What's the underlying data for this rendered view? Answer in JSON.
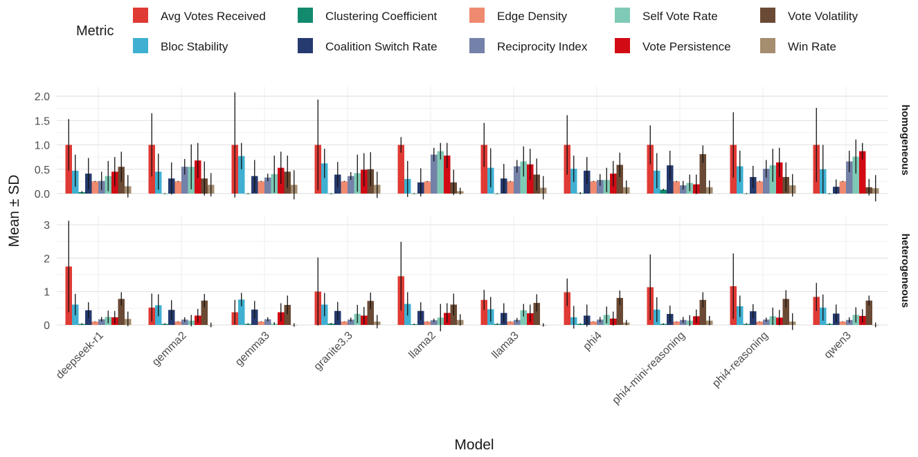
{
  "chart_data": {
    "type": "bar",
    "xlabel": "Model",
    "ylabel": "Mean ± SD",
    "legend": {
      "title": "Metric",
      "placement": "top"
    },
    "colors": {
      "Avg Votes Received": "#e03a35",
      "Bloc Stability": "#3fb0d1",
      "Clustering Coefficient": "#138a6e",
      "Coalition Switch Rate": "#253a6e",
      "Edge Density": "#ef8a70",
      "Reciprocity Index": "#7481a8",
      "Self Vote Rate": "#7fcab6",
      "Vote Persistence": "#d10a14",
      "Vote Volatility": "#6a4a35",
      "Win Rate": "#a58d70"
    },
    "legend_entries": [
      "Avg Votes Received",
      "Bloc Stability",
      "Clustering Coefficient",
      "Coalition Switch Rate",
      "Edge Density",
      "Reciprocity Index",
      "Self Vote Rate",
      "Vote Persistence",
      "Vote Volatility",
      "Win Rate"
    ],
    "categories": [
      "deepseek-r1",
      "gemma2",
      "gemma3",
      "granite3.3",
      "llama2",
      "llama3",
      "phi4",
      "phi4-mini-reasoning",
      "phi4-reasoning",
      "qwen3"
    ],
    "panels": [
      {
        "strip": "homogeneous",
        "ylim": [
          0,
          2.2
        ],
        "yticks": [
          0.0,
          0.5,
          1.0,
          1.5,
          2.0
        ],
        "ytick_labels": [
          "0.0",
          "0.5",
          "1.0",
          "1.5",
          "2.0"
        ],
        "series": [
          {
            "name": "Avg Votes Received",
            "values": [
              1.0,
              1.0,
              1.0,
              1.0,
              1.0,
              1.0,
              1.0,
              1.0,
              1.0,
              1.0
            ],
            "sd": [
              0.53,
              0.65,
              1.08,
              0.93,
              0.16,
              0.45,
              0.61,
              0.4,
              0.67,
              0.76
            ]
          },
          {
            "name": "Bloc Stability",
            "values": [
              0.47,
              0.45,
              0.77,
              0.62,
              0.3,
              0.53,
              0.51,
              0.47,
              0.56,
              0.5
            ],
            "sd": [
              0.33,
              0.37,
              0.27,
              0.3,
              0.37,
              0.4,
              0.27,
              0.36,
              0.32,
              0.5
            ]
          },
          {
            "name": "Clustering Coefficient",
            "values": [
              0.03,
              0.0,
              0.0,
              0.0,
              0.0,
              0.0,
              0.01,
              0.08,
              0.0,
              0.0
            ],
            "sd": [
              0.02,
              0.01,
              0.01,
              0.01,
              0.01,
              0.01,
              0.02,
              0.02,
              0.01,
              0.01
            ]
          },
          {
            "name": "Coalition Switch Rate",
            "values": [
              0.41,
              0.31,
              0.36,
              0.39,
              0.23,
              0.31,
              0.47,
              0.58,
              0.34,
              0.14
            ],
            "sd": [
              0.32,
              0.33,
              0.33,
              0.26,
              0.29,
              0.3,
              0.28,
              0.3,
              0.23,
              0.15
            ]
          },
          {
            "name": "Edge Density",
            "values": [
              0.25,
              0.25,
              0.25,
              0.25,
              0.25,
              0.25,
              0.25,
              0.25,
              0.25,
              0.25
            ],
            "sd": [
              0.01,
              0.01,
              0.01,
              0.01,
              0.01,
              0.01,
              0.01,
              0.01,
              0.01,
              0.01
            ]
          },
          {
            "name": "Reciprocity Index",
            "values": [
              0.26,
              0.55,
              0.33,
              0.36,
              0.8,
              0.56,
              0.28,
              0.17,
              0.51,
              0.66
            ],
            "sd": [
              0.19,
              0.16,
              0.08,
              0.08,
              0.14,
              0.13,
              0.12,
              0.09,
              0.18,
              0.22
            ]
          },
          {
            "name": "Self Vote Rate",
            "values": [
              0.36,
              0.55,
              0.4,
              0.42,
              0.87,
              0.66,
              0.28,
              0.22,
              0.58,
              0.76
            ],
            "sd": [
              0.31,
              0.46,
              0.38,
              0.38,
              0.17,
              0.31,
              0.25,
              0.17,
              0.34,
              0.35
            ]
          },
          {
            "name": "Vote Persistence",
            "values": [
              0.45,
              0.68,
              0.53,
              0.49,
              0.78,
              0.6,
              0.41,
              0.19,
              0.64,
              0.87
            ],
            "sd": [
              0.3,
              0.36,
              0.33,
              0.34,
              0.26,
              0.32,
              0.26,
              0.2,
              0.3,
              0.17
            ]
          },
          {
            "name": "Vote Volatility",
            "values": [
              0.55,
              0.31,
              0.45,
              0.5,
              0.23,
              0.39,
              0.59,
              0.81,
              0.34,
              0.13
            ],
            "sd": [
              0.31,
              0.35,
              0.33,
              0.35,
              0.26,
              0.33,
              0.25,
              0.18,
              0.3,
              0.17
            ]
          },
          {
            "name": "Win Rate",
            "values": [
              0.15,
              0.18,
              0.18,
              0.18,
              0.05,
              0.12,
              0.13,
              0.13,
              0.17,
              0.11
            ],
            "sd": [
              0.23,
              0.24,
              0.3,
              0.27,
              0.07,
              0.24,
              0.14,
              0.14,
              0.23,
              0.27
            ]
          }
        ]
      },
      {
        "strip": "heterogeneous",
        "ylim": [
          0,
          3.25
        ],
        "yticks": [
          0,
          1,
          2,
          3
        ],
        "ytick_labels": [
          "0",
          "1",
          "2",
          "3"
        ],
        "series": [
          {
            "name": "Avg Votes Received",
            "values": [
              1.75,
              0.52,
              0.38,
              1.0,
              1.46,
              0.75,
              0.98,
              1.13,
              1.16,
              0.84
            ],
            "sd": [
              1.37,
              0.42,
              0.37,
              1.02,
              1.03,
              0.3,
              0.41,
              0.98,
              0.98,
              0.42
            ]
          },
          {
            "name": "Bloc Stability",
            "values": [
              0.61,
              0.59,
              0.76,
              0.61,
              0.63,
              0.47,
              0.23,
              0.46,
              0.56,
              0.52
            ],
            "sd": [
              0.32,
              0.33,
              0.2,
              0.35,
              0.35,
              0.37,
              0.34,
              0.37,
              0.32,
              0.39
            ]
          },
          {
            "name": "Clustering Coefficient",
            "values": [
              0.03,
              0.03,
              0.03,
              0.04,
              0.02,
              0.03,
              0.03,
              0.03,
              0.03,
              0.03
            ],
            "sd": [
              0.02,
              0.02,
              0.02,
              0.02,
              0.02,
              0.02,
              0.02,
              0.02,
              0.02,
              0.02
            ]
          },
          {
            "name": "Coalition Switch Rate",
            "values": [
              0.44,
              0.45,
              0.46,
              0.42,
              0.42,
              0.36,
              0.28,
              0.33,
              0.41,
              0.34
            ],
            "sd": [
              0.24,
              0.29,
              0.26,
              0.27,
              0.26,
              0.29,
              0.33,
              0.25,
              0.21,
              0.27
            ]
          },
          {
            "name": "Edge Density",
            "values": [
              0.1,
              0.1,
              0.1,
              0.1,
              0.1,
              0.1,
              0.1,
              0.1,
              0.1,
              0.1
            ],
            "sd": [
              0.01,
              0.01,
              0.01,
              0.01,
              0.01,
              0.01,
              0.01,
              0.01,
              0.01,
              0.01
            ]
          },
          {
            "name": "Reciprocity Index",
            "values": [
              0.17,
              0.16,
              0.17,
              0.16,
              0.14,
              0.15,
              0.16,
              0.15,
              0.16,
              0.15
            ],
            "sd": [
              0.07,
              0.07,
              0.06,
              0.06,
              0.05,
              0.06,
              0.08,
              0.09,
              0.06,
              0.08
            ]
          },
          {
            "name": "Self Vote Rate",
            "values": [
              0.24,
              0.13,
              0.04,
              0.33,
              0.22,
              0.44,
              0.3,
              0.13,
              0.26,
              0.3
            ],
            "sd": [
              0.19,
              0.17,
              0.04,
              0.27,
              0.41,
              0.19,
              0.25,
              0.16,
              0.26,
              0.23
            ]
          },
          {
            "name": "Vote Persistence",
            "values": [
              0.23,
              0.28,
              0.38,
              0.28,
              0.36,
              0.35,
              0.19,
              0.26,
              0.22,
              0.27
            ],
            "sd": [
              0.19,
              0.2,
              0.27,
              0.26,
              0.29,
              0.26,
              0.21,
              0.2,
              0.23,
              0.2
            ]
          },
          {
            "name": "Vote Volatility",
            "values": [
              0.78,
              0.73,
              0.6,
              0.72,
              0.61,
              0.66,
              0.81,
              0.75,
              0.78,
              0.73
            ],
            "sd": [
              0.2,
              0.2,
              0.28,
              0.25,
              0.33,
              0.26,
              0.22,
              0.23,
              0.26,
              0.15
            ]
          },
          {
            "name": "Win Rate",
            "values": [
              0.18,
              0.0,
              0.0,
              0.1,
              0.15,
              0.0,
              0.07,
              0.13,
              0.1,
              0.0
            ],
            "sd": [
              0.22,
              0.07,
              0.05,
              0.2,
              0.17,
              0.05,
              0.08,
              0.14,
              0.25,
              0.07
            ]
          }
        ]
      }
    ]
  }
}
